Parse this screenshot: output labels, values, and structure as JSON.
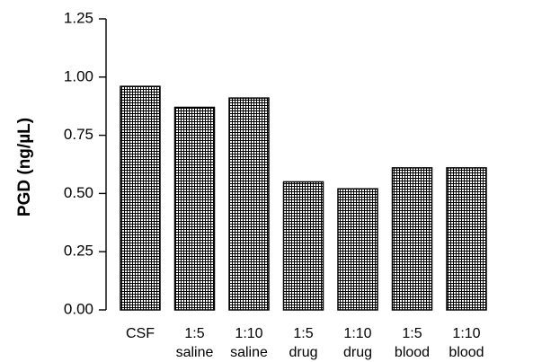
{
  "chart_data": {
    "type": "bar",
    "categories": [
      [
        "CSF",
        ""
      ],
      [
        "1:5",
        "saline"
      ],
      [
        "1:10",
        "saline"
      ],
      [
        "1:5",
        "drug"
      ],
      [
        "1:10",
        "drug"
      ],
      [
        "1:5",
        "blood"
      ],
      [
        "1:10",
        "blood"
      ]
    ],
    "values": [
      0.96,
      0.87,
      0.91,
      0.55,
      0.52,
      0.61,
      0.61
    ],
    "ylabel": "PGD (ng/µL)",
    "xlabel": "",
    "ylim": [
      0,
      1.25
    ],
    "yticks": [
      "0.00",
      "0.25",
      "0.50",
      "0.75",
      "1.00",
      "1.25"
    ],
    "grid": false,
    "bar_pattern": "cross-hatch",
    "colors": {
      "bar_fill": "#ffffff",
      "hatch": "#000000",
      "axis": "#000000"
    }
  }
}
